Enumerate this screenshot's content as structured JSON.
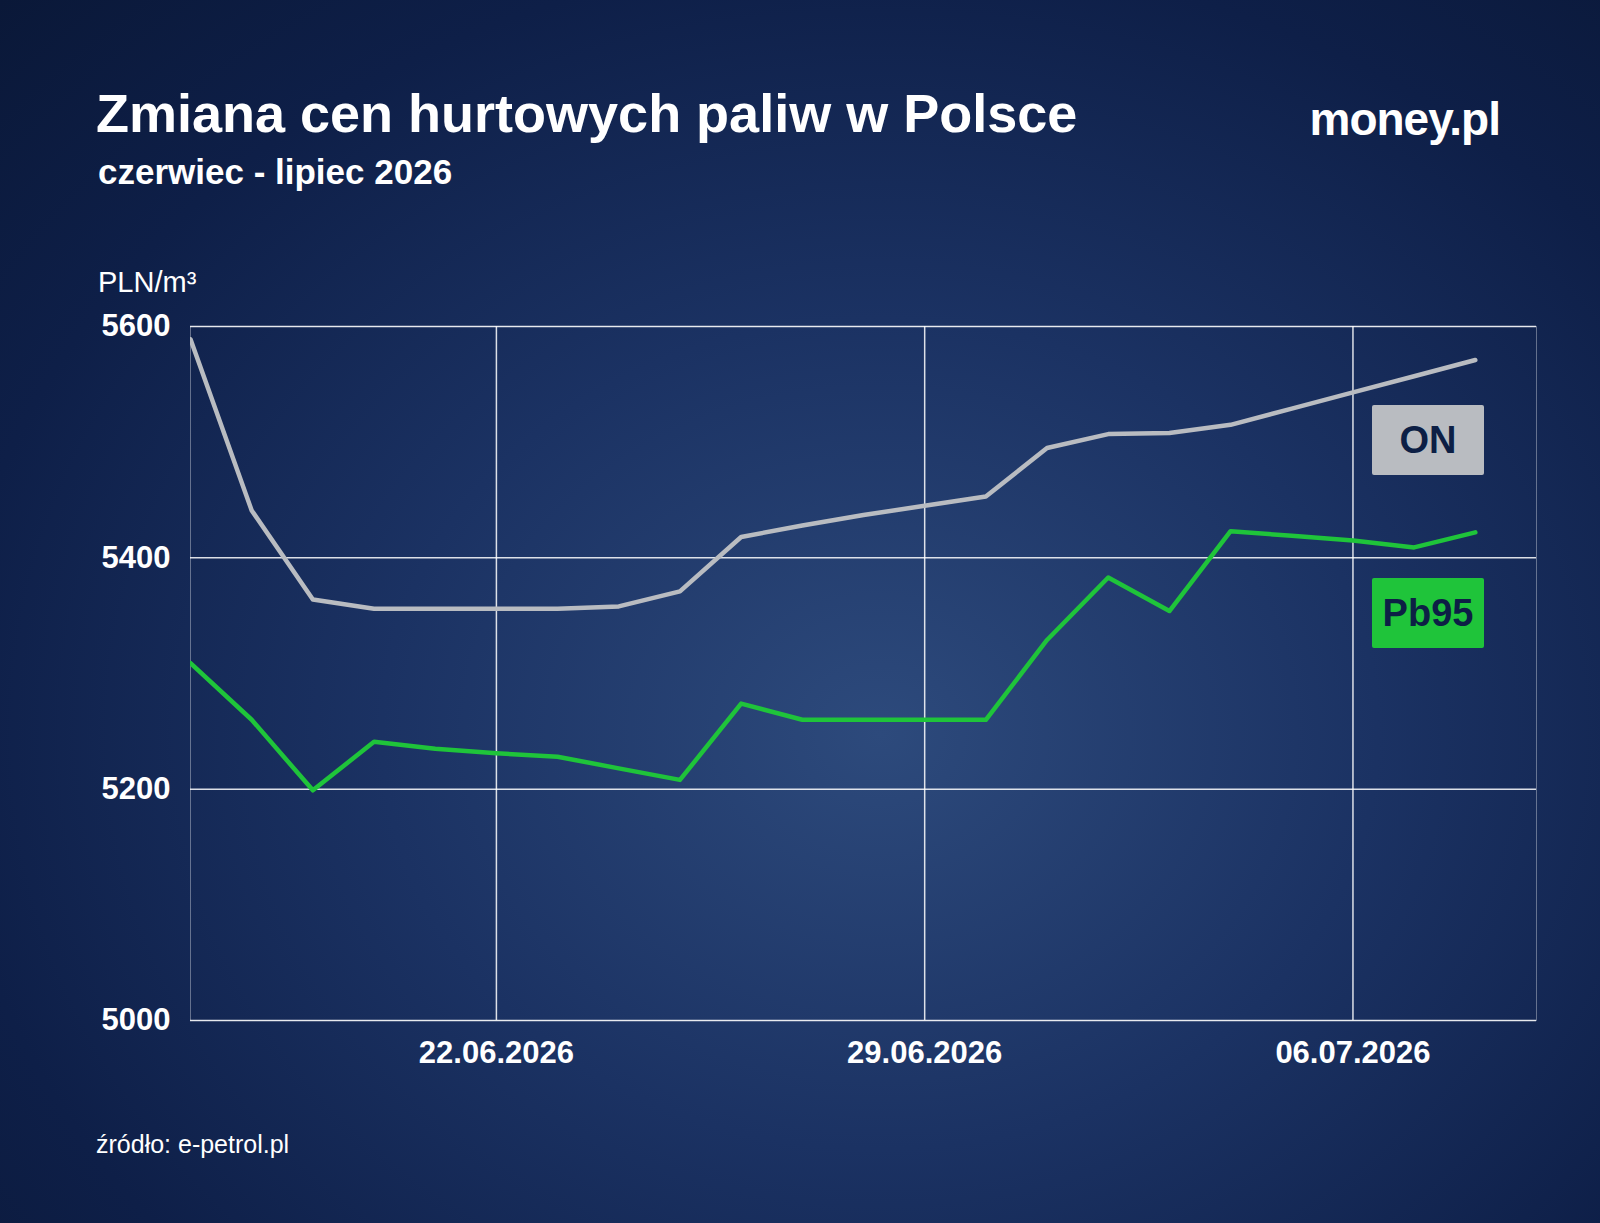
{
  "chart_data": {
    "type": "line",
    "title": "Zmiana cen hurtowych paliw w Polsce",
    "subtitle": "czerwiec - lipiec 2026",
    "logo": "money.pl",
    "source": "źródło: e-petrol.pl",
    "ylabel": "PLN/m³",
    "x": [
      "2026-06-17",
      "2026-06-18",
      "2026-06-19",
      "2026-06-20",
      "2026-06-21",
      "2026-06-22",
      "2026-06-23",
      "2026-06-24",
      "2026-06-25",
      "2026-06-26",
      "2026-06-27",
      "2026-06-28",
      "2026-06-29",
      "2026-06-30",
      "2026-07-01",
      "2026-07-02",
      "2026-07-03",
      "2026-07-04",
      "2026-07-05",
      "2026-07-06",
      "2026-07-07",
      "2026-07-08"
    ],
    "series": [
      {
        "name": "ON",
        "color": "#b9bcc1",
        "values": [
          5589,
          5441,
          5364,
          5356,
          5356,
          5356,
          5356,
          5358,
          5371,
          5418,
          5428,
          5437,
          5445,
          5453,
          5495,
          5507,
          5508,
          5515,
          5529,
          5543,
          5557,
          5571
        ]
      },
      {
        "name": "Pb95",
        "color": "#1fc43a",
        "values": [
          5309,
          5260,
          5199,
          5241,
          5235,
          5231,
          5228,
          5218,
          5208,
          5274,
          5260,
          5260,
          5260,
          5260,
          5329,
          5383,
          5354,
          5423,
          5419,
          5415,
          5409,
          5422
        ]
      }
    ],
    "xlim": [
      "2026-06-17",
      "2026-07-09"
    ],
    "xticks": [
      {
        "value": "2026-06-22",
        "label": "22.06.2026"
      },
      {
        "value": "2026-06-29",
        "label": "29.06.2026"
      },
      {
        "value": "2026-07-06",
        "label": "06.07.2026"
      }
    ],
    "ylim": [
      5000,
      5600
    ],
    "yticks": [
      5000,
      5200,
      5400,
      5600
    ],
    "grid": true,
    "legend": "right"
  }
}
